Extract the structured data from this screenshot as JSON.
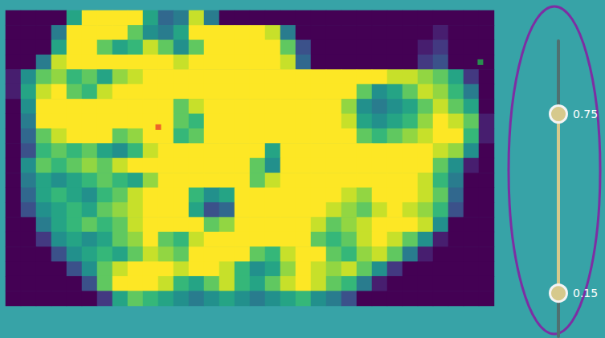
{
  "chart_data": {
    "type": "heatmap",
    "tick_labels": false,
    "cells": [
      [
        0.1,
        0.1,
        0.15,
        0.1,
        0.5,
        0.85,
        0.9,
        0.85,
        0.8,
        0.5,
        0.35,
        0.4,
        0.7,
        0.4,
        0.05,
        0.05,
        0.05,
        0.05,
        0.05,
        0.05,
        0.05,
        0.05,
        0.05,
        0.05,
        0.05,
        0.05,
        0.05,
        0.05,
        0.05,
        0.05,
        0.05,
        0.05
      ],
      [
        0.1,
        0.1,
        0.1,
        0.4,
        0.85,
        0.9,
        0.85,
        0.8,
        0.6,
        0.45,
        0.4,
        0.5,
        0.85,
        0.8,
        0.85,
        0.9,
        0.85,
        0.7,
        0.4,
        0.05,
        0.05,
        0.05,
        0.05,
        0.05,
        0.05,
        0.05,
        0.05,
        0.05,
        0.2,
        0.05,
        0.05,
        0.05
      ],
      [
        0.1,
        0.1,
        0.15,
        0.5,
        0.85,
        0.9,
        0.6,
        0.5,
        0.55,
        0.7,
        0.6,
        0.45,
        0.6,
        0.85,
        0.9,
        0.85,
        0.9,
        0.85,
        0.6,
        0.3,
        0.05,
        0.05,
        0.05,
        0.05,
        0.05,
        0.05,
        0.05,
        0.2,
        0.25,
        0.05,
        0.05,
        0.05
      ],
      [
        0.1,
        0.15,
        0.4,
        0.7,
        0.85,
        0.75,
        0.8,
        0.85,
        0.9,
        0.85,
        0.8,
        0.7,
        0.85,
        0.9,
        0.85,
        0.9,
        0.85,
        0.8,
        0.7,
        0.35,
        0.05,
        0.05,
        0.05,
        0.05,
        0.05,
        0.05,
        0.05,
        0.25,
        0.3,
        0.1,
        0.05,
        0.05
      ],
      [
        0.2,
        0.45,
        0.6,
        0.65,
        0.55,
        0.6,
        0.5,
        0.65,
        0.7,
        0.8,
        0.85,
        0.8,
        0.75,
        0.8,
        0.85,
        0.8,
        0.85,
        0.8,
        0.75,
        0.85,
        0.9,
        0.85,
        0.8,
        0.8,
        0.75,
        0.7,
        0.7,
        0.65,
        0.6,
        0.5,
        0.25,
        0.1
      ],
      [
        0.2,
        0.5,
        0.7,
        0.75,
        0.6,
        0.55,
        0.7,
        0.8,
        0.85,
        0.9,
        0.85,
        0.8,
        0.85,
        0.9,
        0.85,
        0.85,
        0.9,
        0.85,
        0.8,
        0.85,
        0.9,
        0.85,
        0.75,
        0.6,
        0.45,
        0.5,
        0.6,
        0.7,
        0.65,
        0.55,
        0.4,
        0.1
      ],
      [
        0.1,
        0.45,
        0.8,
        0.85,
        0.9,
        0.85,
        0.8,
        0.85,
        0.9,
        0.85,
        0.8,
        0.6,
        0.7,
        0.85,
        0.9,
        0.85,
        0.8,
        0.85,
        0.9,
        0.85,
        0.8,
        0.85,
        0.65,
        0.45,
        0.4,
        0.45,
        0.5,
        0.6,
        0.7,
        0.6,
        0.5,
        0.15
      ],
      [
        0.1,
        0.4,
        0.75,
        0.85,
        0.9,
        0.9,
        0.85,
        0.8,
        0.85,
        0.9,
        0.85,
        0.6,
        0.55,
        0.75,
        0.85,
        0.9,
        0.85,
        0.8,
        0.85,
        0.9,
        0.85,
        0.8,
        0.7,
        0.5,
        0.45,
        0.5,
        0.55,
        0.65,
        0.75,
        0.7,
        0.6,
        0.2
      ],
      [
        0.1,
        0.35,
        0.6,
        0.7,
        0.75,
        0.85,
        0.8,
        0.6,
        0.65,
        0.8,
        0.85,
        0.55,
        0.6,
        0.8,
        0.85,
        0.9,
        0.85,
        0.8,
        0.85,
        0.8,
        0.85,
        0.8,
        0.75,
        0.6,
        0.55,
        0.6,
        0.65,
        0.7,
        0.8,
        0.75,
        0.55,
        0.2
      ],
      [
        0.1,
        0.3,
        0.55,
        0.6,
        0.55,
        0.6,
        0.5,
        0.45,
        0.55,
        0.7,
        0.8,
        0.85,
        0.8,
        0.85,
        0.9,
        0.85,
        0.8,
        0.5,
        0.8,
        0.85,
        0.8,
        0.85,
        0.8,
        0.75,
        0.8,
        0.85,
        0.8,
        0.75,
        0.7,
        0.65,
        0.45,
        0.15
      ],
      [
        0.1,
        0.45,
        0.6,
        0.55,
        0.6,
        0.65,
        0.6,
        0.7,
        0.75,
        0.8,
        0.85,
        0.8,
        0.75,
        0.85,
        0.8,
        0.85,
        0.6,
        0.45,
        0.8,
        0.85,
        0.9,
        0.85,
        0.8,
        0.85,
        0.9,
        0.85,
        0.8,
        0.75,
        0.6,
        0.45,
        0.2,
        0.05
      ],
      [
        0.1,
        0.4,
        0.5,
        0.45,
        0.5,
        0.55,
        0.6,
        0.55,
        0.5,
        0.65,
        0.8,
        0.85,
        0.8,
        0.85,
        0.9,
        0.85,
        0.6,
        0.7,
        0.85,
        0.9,
        0.85,
        0.8,
        0.75,
        0.8,
        0.85,
        0.8,
        0.75,
        0.7,
        0.55,
        0.4,
        0.1,
        0.05
      ],
      [
        0.05,
        0.35,
        0.5,
        0.55,
        0.5,
        0.45,
        0.55,
        0.6,
        0.7,
        0.8,
        0.85,
        0.8,
        0.55,
        0.45,
        0.5,
        0.8,
        0.85,
        0.9,
        0.85,
        0.8,
        0.85,
        0.8,
        0.7,
        0.65,
        0.75,
        0.8,
        0.75,
        0.7,
        0.6,
        0.35,
        0.05,
        0.05
      ],
      [
        0.05,
        0.3,
        0.45,
        0.5,
        0.55,
        0.5,
        0.6,
        0.65,
        0.7,
        0.75,
        0.8,
        0.75,
        0.5,
        0.3,
        0.35,
        0.75,
        0.85,
        0.8,
        0.85,
        0.8,
        0.75,
        0.7,
        0.65,
        0.6,
        0.7,
        0.75,
        0.7,
        0.65,
        0.55,
        0.3,
        0.05,
        0.05
      ],
      [
        0.05,
        0.15,
        0.4,
        0.5,
        0.55,
        0.6,
        0.55,
        0.6,
        0.7,
        0.8,
        0.85,
        0.8,
        0.75,
        0.6,
        0.65,
        0.8,
        0.85,
        0.8,
        0.85,
        0.8,
        0.7,
        0.6,
        0.65,
        0.7,
        0.75,
        0.8,
        0.75,
        0.7,
        0.45,
        0.15,
        0.05,
        0.05
      ],
      [
        0.05,
        0.1,
        0.25,
        0.45,
        0.5,
        0.45,
        0.5,
        0.6,
        0.65,
        0.75,
        0.6,
        0.55,
        0.7,
        0.8,
        0.85,
        0.8,
        0.75,
        0.8,
        0.85,
        0.75,
        0.6,
        0.55,
        0.6,
        0.7,
        0.75,
        0.7,
        0.6,
        0.45,
        0.2,
        0.05,
        0.05,
        0.05
      ],
      [
        0.05,
        0.05,
        0.15,
        0.3,
        0.45,
        0.5,
        0.55,
        0.5,
        0.6,
        0.7,
        0.65,
        0.6,
        0.75,
        0.8,
        0.85,
        0.75,
        0.6,
        0.55,
        0.7,
        0.8,
        0.75,
        0.6,
        0.55,
        0.65,
        0.7,
        0.6,
        0.4,
        0.2,
        0.05,
        0.05,
        0.05,
        0.05
      ],
      [
        0.05,
        0.05,
        0.05,
        0.15,
        0.3,
        0.45,
        0.6,
        0.7,
        0.75,
        0.8,
        0.75,
        0.7,
        0.8,
        0.75,
        0.7,
        0.55,
        0.45,
        0.5,
        0.65,
        0.75,
        0.7,
        0.65,
        0.7,
        0.6,
        0.45,
        0.25,
        0.1,
        0.05,
        0.05,
        0.05,
        0.05,
        0.05
      ],
      [
        0.05,
        0.05,
        0.05,
        0.05,
        0.05,
        0.3,
        0.6,
        0.75,
        0.8,
        0.75,
        0.7,
        0.55,
        0.5,
        0.6,
        0.7,
        0.55,
        0.5,
        0.6,
        0.7,
        0.75,
        0.7,
        0.6,
        0.55,
        0.4,
        0.2,
        0.05,
        0.05,
        0.05,
        0.05,
        0.05,
        0.05,
        0.05
      ],
      [
        0.05,
        0.05,
        0.05,
        0.05,
        0.05,
        0.05,
        0.25,
        0.5,
        0.6,
        0.55,
        0.5,
        0.45,
        0.4,
        0.45,
        0.5,
        0.45,
        0.4,
        0.45,
        0.5,
        0.55,
        0.45,
        0.4,
        0.3,
        0.15,
        0.05,
        0.05,
        0.05,
        0.05,
        0.05,
        0.05,
        0.05,
        0.05
      ]
    ],
    "color_range": {
      "min": 0,
      "max": 1,
      "selected_low": 0.15,
      "selected_high": 0.75
    },
    "markers": [
      {
        "x": 9.5,
        "y": 7.4,
        "color": "#e8432b"
      },
      {
        "x": 30.6,
        "y": 3.0,
        "color": "#22b14c"
      }
    ]
  }
}
